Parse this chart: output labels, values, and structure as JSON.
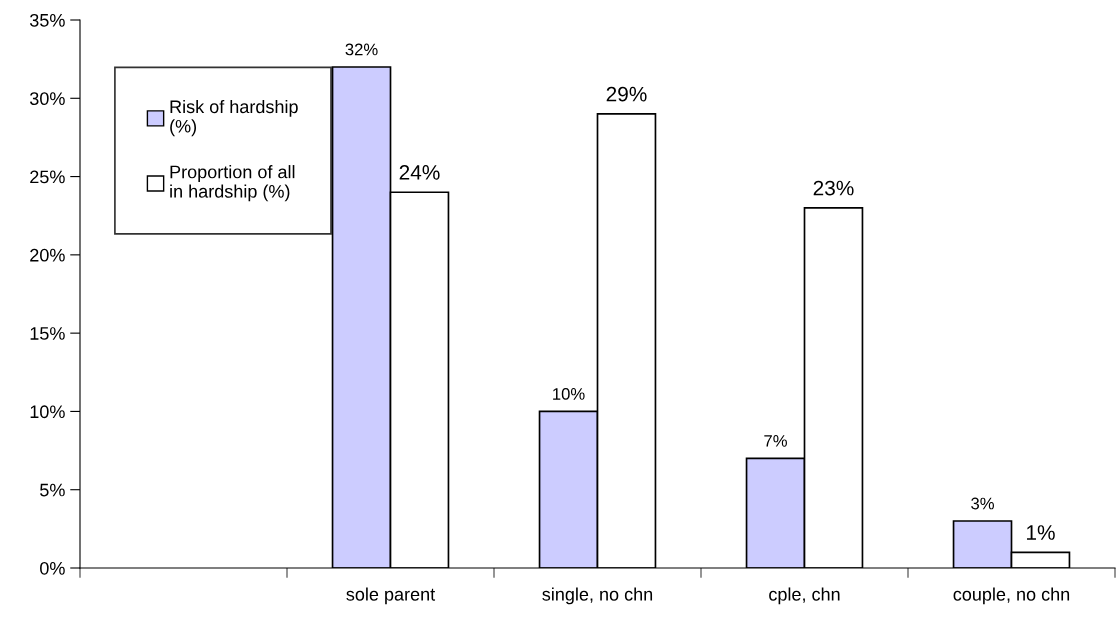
{
  "chart_data": {
    "type": "bar",
    "categories": [
      null,
      "sole parent",
      "single, no chn",
      "cple, chn",
      "couple, no chn"
    ],
    "series": [
      {
        "name": "Risk of hardship\n(%)",
        "color": "#ccccff",
        "values": [
          null,
          32,
          10,
          7,
          3
        ],
        "value_labels": [
          null,
          "32%",
          "10%",
          "7%",
          "3%"
        ]
      },
      {
        "name": "Proportion of all\nin hardship (%)",
        "color": "#ffffff",
        "values": [
          null,
          24,
          29,
          23,
          1
        ],
        "value_labels": [
          null,
          "24%",
          "29%",
          "23%",
          "1%"
        ]
      }
    ],
    "ylim": [
      0,
      35
    ],
    "yticks": [
      {
        "value": 0,
        "label": "0%"
      },
      {
        "value": 5,
        "label": "5%"
      },
      {
        "value": 10,
        "label": "10%"
      },
      {
        "value": 15,
        "label": "15%"
      },
      {
        "value": 20,
        "label": "20%"
      },
      {
        "value": 25,
        "label": "25%"
      },
      {
        "value": 30,
        "label": "30%"
      },
      {
        "value": 35,
        "label": "35%"
      }
    ],
    "grid": false,
    "legend": "top left"
  }
}
